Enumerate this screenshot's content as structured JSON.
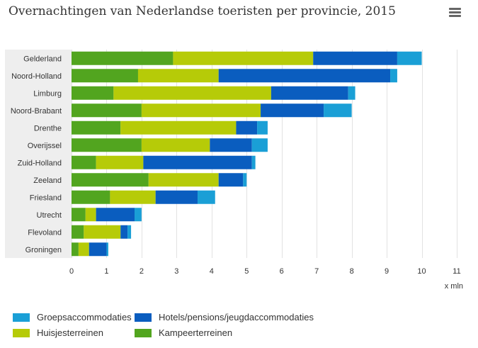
{
  "title": "Overnachtingen van Nederlandse toeristen per provincie, 2015",
  "menu_icon": "hamburger-menu-icon",
  "colors": {
    "groepsaccommodaties": "#1a9fd6",
    "hotels": "#0a5dbf",
    "huisjesterreinen": "#b6cb08",
    "kampeerterreinen": "#52a51f",
    "band": "#eeeeee"
  },
  "chart_data": {
    "type": "bar",
    "orientation": "horizontal",
    "stacked": true,
    "title": "Overnachtingen van Nederlandse toeristen per provincie, 2015",
    "xlabel": "x mln",
    "ylabel": "",
    "xlim": [
      0,
      11
    ],
    "xticks": [
      "0",
      "1",
      "2",
      "3",
      "4",
      "5",
      "6",
      "7",
      "8",
      "9",
      "10",
      "11"
    ],
    "grid": true,
    "legend_position": "bottom",
    "categories": [
      "Gelderland",
      "Noord-Holland",
      "Limburg",
      "Noord-Brabant",
      "Drenthe",
      "Overijssel",
      "Zuid-Holland",
      "Zeeland",
      "Friesland",
      "Utrecht",
      "Flevoland",
      "Groningen"
    ],
    "series": [
      {
        "name": "Kampeerterreinen",
        "color": "#52a51f",
        "values": [
          2.9,
          1.9,
          1.2,
          2.0,
          1.4,
          2.0,
          0.7,
          2.2,
          1.1,
          0.4,
          0.35,
          0.2
        ]
      },
      {
        "name": "Huisjesterreinen",
        "color": "#b6cb08",
        "values": [
          4.0,
          2.3,
          4.5,
          3.4,
          3.3,
          1.95,
          1.35,
          2.0,
          1.3,
          0.3,
          1.05,
          0.3
        ]
      },
      {
        "name": "Hotels/pensions/jeugdaccommodaties",
        "color": "#0a5dbf",
        "values": [
          2.4,
          4.9,
          2.2,
          1.8,
          0.6,
          1.2,
          3.1,
          0.7,
          1.2,
          1.1,
          0.2,
          0.5
        ]
      },
      {
        "name": "Groepsaccommodaties",
        "color": "#1a9fd6",
        "values": [
          0.7,
          0.2,
          0.2,
          0.8,
          0.3,
          0.45,
          0.1,
          0.1,
          0.5,
          0.2,
          0.1,
          0.05
        ]
      }
    ]
  },
  "legend": [
    {
      "label": "Groepsaccommodaties",
      "color": "#1a9fd6"
    },
    {
      "label": "Hotels/pensions/jeugdaccommodaties",
      "color": "#0a5dbf"
    },
    {
      "label": "Huisjesterreinen",
      "color": "#b6cb08"
    },
    {
      "label": "Kampeerterreinen",
      "color": "#52a51f"
    }
  ]
}
